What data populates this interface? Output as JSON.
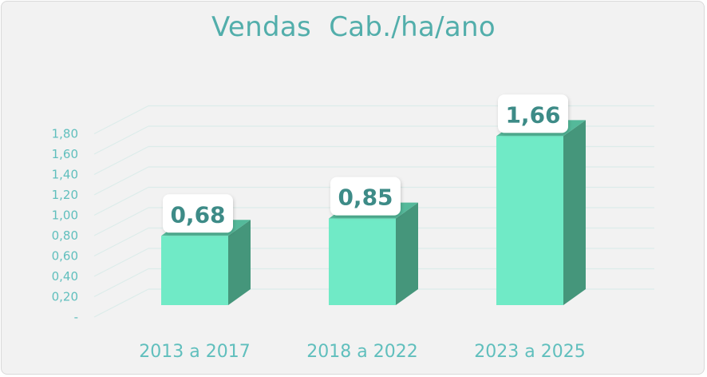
{
  "chart_data": {
    "type": "bar",
    "title": "Vendas  Cab./ha/ano",
    "categories": [
      "2013 a 2017",
      "2018 a 2022",
      "2023 a 2025"
    ],
    "values": [
      0.68,
      0.85,
      1.66
    ],
    "value_labels": [
      "0,68",
      "0,85",
      "1,66"
    ],
    "ylim": [
      0,
      1.8
    ],
    "y_ticks": [
      "-",
      "0,20",
      "0,40",
      "0,60",
      "0,80",
      "1,00",
      "1,20",
      "1,40",
      "1,60",
      "1,80"
    ],
    "xlabel": "",
    "ylabel": "",
    "grid": true,
    "style": "3d-column",
    "colors": {
      "bar_front": "#70eac6",
      "bar_side": "#45967b",
      "bar_top": "#54b99a",
      "axis_text": "#60bfbd",
      "title": "#52aeab",
      "value_text": "#3d8b87",
      "grid": "#dcecea"
    }
  }
}
